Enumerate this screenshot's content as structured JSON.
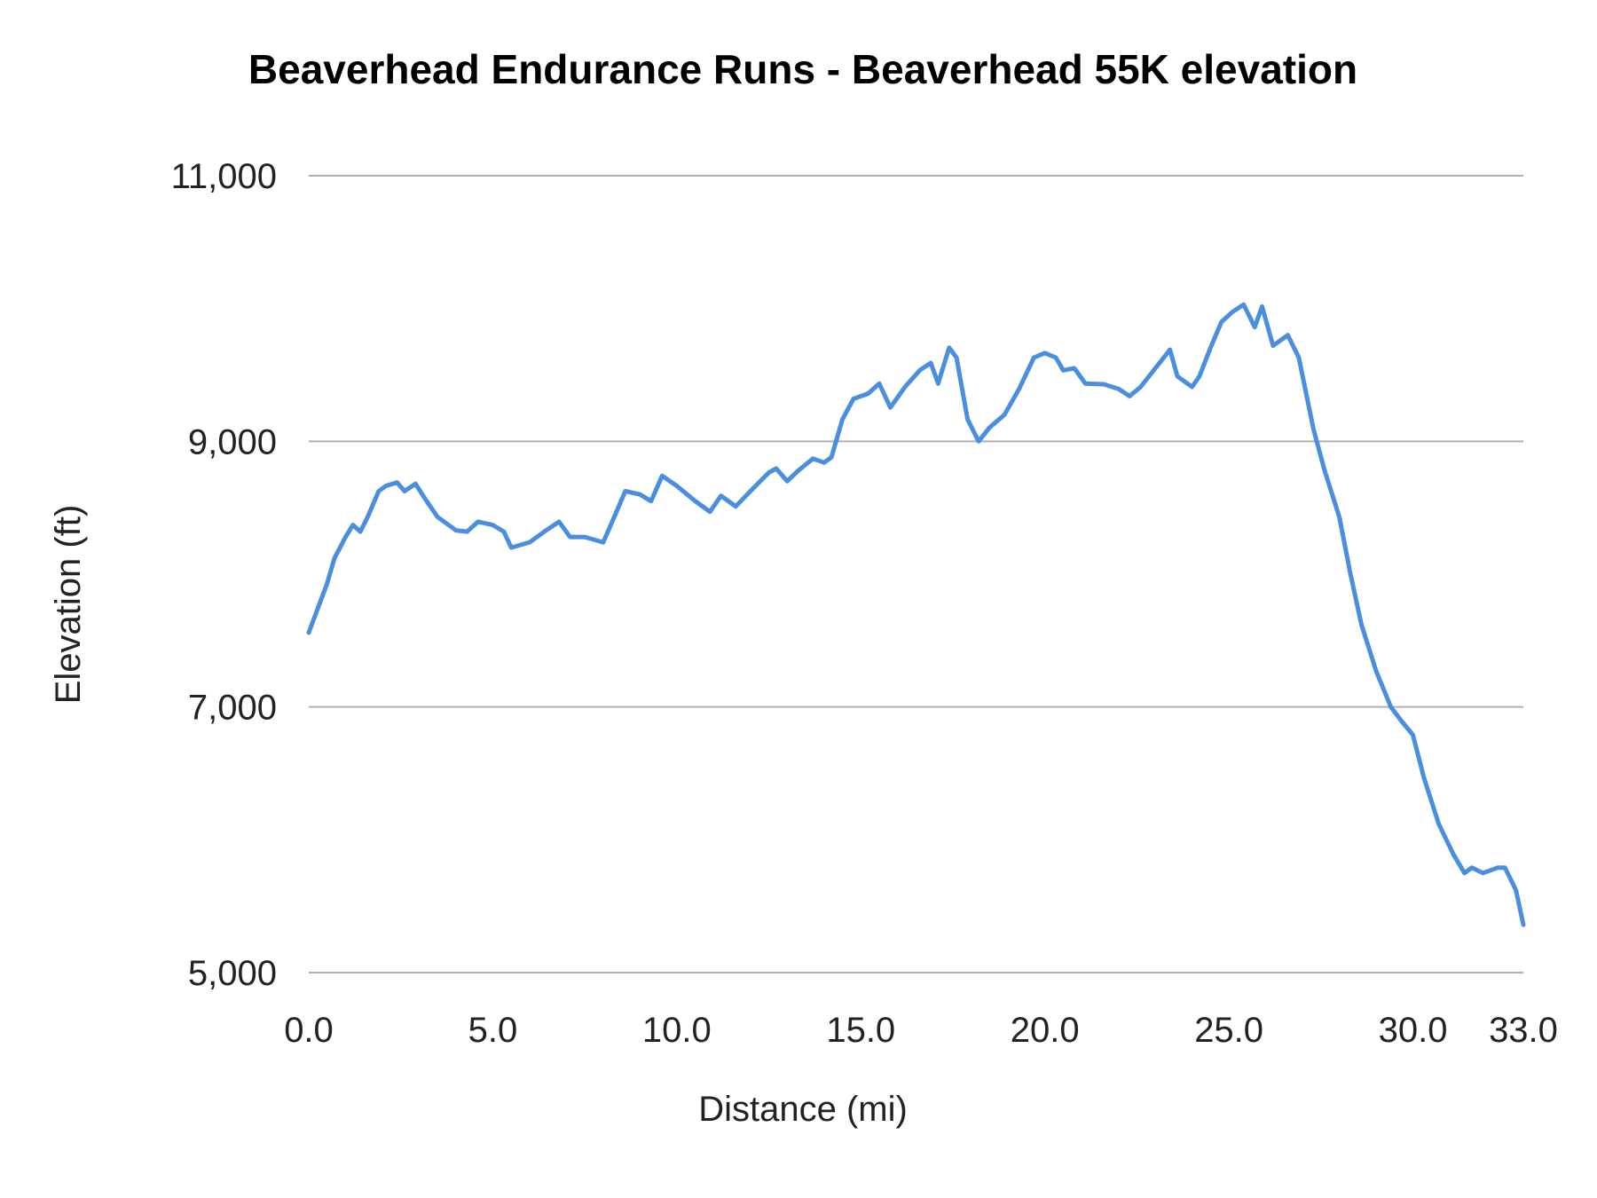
{
  "chart_data": {
    "type": "line",
    "title": "Beaverhead Endurance Runs - Beaverhead 55K elevation",
    "xlabel": "Distance (mi)",
    "ylabel": "Elevation (ft)",
    "xlim": [
      0,
      33
    ],
    "ylim": [
      5000,
      11000
    ],
    "xticks": [
      0,
      5,
      10,
      15,
      20,
      25,
      30,
      33
    ],
    "xtick_labels": [
      "0.0",
      "5.0",
      "10.0",
      "15.0",
      "20.0",
      "25.0",
      "30.0",
      "33.0"
    ],
    "yticks": [
      5000,
      7000,
      9000,
      11000
    ],
    "ytick_labels": [
      "5,000",
      "7,000",
      "9,000",
      "11,000"
    ],
    "grid": "horizontal",
    "legend": "none",
    "color": "#4a8ee0",
    "series": [
      {
        "x": [
          0.0,
          0.5,
          0.7,
          1.0,
          1.2,
          1.4,
          1.6,
          1.9,
          2.1,
          2.4,
          2.6,
          2.9,
          3.2,
          3.5,
          4.0,
          4.3,
          4.6,
          5.0,
          5.3,
          5.5,
          6.0,
          6.4,
          6.8,
          7.1,
          7.5,
          8.0,
          8.3,
          8.6,
          9.0,
          9.3,
          9.6,
          10.0,
          10.5,
          10.9,
          11.2,
          11.6,
          12.0,
          12.5,
          12.7,
          13.0,
          13.3,
          13.7,
          14.0,
          14.2,
          14.5,
          14.8,
          15.2,
          15.5,
          15.8,
          16.2,
          16.6,
          16.9,
          17.1,
          17.4,
          17.6,
          17.9,
          18.2,
          18.5,
          18.9,
          19.3,
          19.7,
          20.0,
          20.3,
          20.5,
          20.8,
          21.1,
          21.6,
          22.0,
          22.3,
          22.6,
          23.0,
          23.4,
          23.6,
          24.0,
          24.2,
          24.5,
          24.8,
          25.1,
          25.4,
          25.7,
          25.9,
          26.2,
          26.6,
          26.9,
          27.3,
          27.6,
          28.0,
          28.3,
          28.6,
          29.0,
          29.4,
          29.7,
          30.0,
          30.3,
          30.7,
          31.1,
          31.4,
          31.6,
          31.9,
          32.3,
          32.5,
          32.8,
          33.0
        ],
        "y": [
          7560,
          7930,
          8120,
          8280,
          8370,
          8320,
          8430,
          8625,
          8665,
          8690,
          8625,
          8680,
          8550,
          8430,
          8330,
          8320,
          8395,
          8370,
          8320,
          8200,
          8240,
          8320,
          8395,
          8280,
          8280,
          8240,
          8430,
          8625,
          8600,
          8550,
          8740,
          8665,
          8550,
          8470,
          8590,
          8510,
          8625,
          8765,
          8795,
          8700,
          8780,
          8870,
          8840,
          8880,
          9165,
          9320,
          9360,
          9435,
          9255,
          9410,
          9535,
          9590,
          9435,
          9705,
          9630,
          9165,
          9000,
          9105,
          9200,
          9395,
          9630,
          9665,
          9630,
          9535,
          9550,
          9435,
          9430,
          9395,
          9340,
          9410,
          9550,
          9690,
          9490,
          9410,
          9490,
          9705,
          9900,
          9975,
          10030,
          9860,
          10015,
          9720,
          9800,
          9630,
          9090,
          8780,
          8430,
          8005,
          7620,
          7270,
          7000,
          6890,
          6790,
          6465,
          6120,
          5890,
          5750,
          5790,
          5750,
          5790,
          5790,
          5620,
          5360
        ]
      }
    ]
  }
}
